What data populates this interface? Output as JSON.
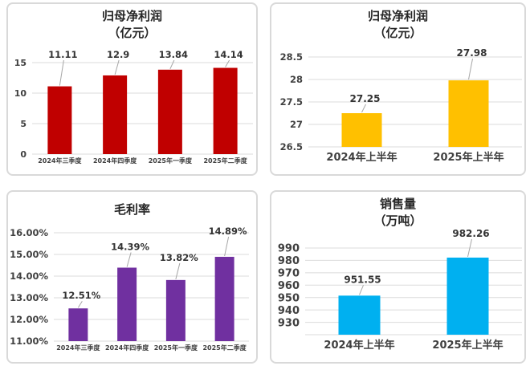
{
  "colors": {
    "gridline": "#DBDBDB",
    "axis_text": "#404040",
    "data_label": "#333333",
    "leader_line": "#A6A6A6",
    "panel_border": "#D9D9D9",
    "title_text": "#262626"
  },
  "chart_data": [
    {
      "type": "bar",
      "title": "归母净利润",
      "subtitle": "（亿元）",
      "categories": [
        "2024年三季度",
        "2024年四季度",
        "2025年一季度",
        "2025年二季度"
      ],
      "values": [
        11.11,
        12.9,
        13.84,
        14.14
      ],
      "value_labels": [
        "11.11",
        "12.9",
        "13.84",
        "14.14"
      ],
      "ylim": [
        0,
        15
      ],
      "ytick_values": [
        15,
        10,
        5,
        0
      ],
      "ytick_labels": [
        "15",
        "10",
        "5",
        "0"
      ],
      "bar_color": "#C00000",
      "grid": true,
      "legend": "none",
      "value_label_layout": "aligned-top-row-with-leader-lines"
    },
    {
      "type": "bar",
      "title": "归母净利润",
      "subtitle": "（亿元）",
      "categories": [
        "2024年上半年",
        "2025年上半年"
      ],
      "values": [
        27.25,
        27.98
      ],
      "value_labels": [
        "27.25",
        "27.98"
      ],
      "ylim": [
        26.5,
        28.5
      ],
      "ytick_values": [
        28.5,
        28,
        27.5,
        27,
        26.5
      ],
      "ytick_labels": [
        "28.5",
        "28",
        "27.5",
        "27",
        "26.5"
      ],
      "bar_color": "#FFC000",
      "grid": true,
      "legend": "none",
      "value_label_layout": "above-bar-with-leader-lines"
    },
    {
      "type": "bar",
      "title": "毛利率",
      "categories": [
        "2024年三季度",
        "2024年四季度",
        "2025年一季度",
        "2025年二季度"
      ],
      "values": [
        12.51,
        14.39,
        13.82,
        14.89
      ],
      "value_labels": [
        "12.51%",
        "14.39%",
        "13.82%",
        "14.89%"
      ],
      "ylim": [
        11,
        16
      ],
      "ytick_values": [
        16,
        15,
        14,
        13,
        12,
        11
      ],
      "ytick_labels": [
        "16.00%",
        "15.00%",
        "14.00%",
        "13.00%",
        "12.00%",
        "11.00%"
      ],
      "bar_color": "#7030A0",
      "grid": true,
      "legend": "none",
      "value_label_layout": "above-bar-with-leader-lines"
    },
    {
      "type": "bar",
      "title": "销售量",
      "subtitle": "（万吨）",
      "categories": [
        "2024年上半年",
        "2025年上半年"
      ],
      "values": [
        951.55,
        982.26
      ],
      "value_labels": [
        "951.55",
        "982.26"
      ],
      "ylim": [
        920,
        990
      ],
      "ytick_values": [
        990,
        980,
        970,
        960,
        950,
        940,
        930
      ],
      "ytick_labels": [
        "990",
        "980",
        "970",
        "960",
        "950",
        "940",
        "930"
      ],
      "bar_color": "#00B0F0",
      "grid": true,
      "legend": "none",
      "value_label_layout": "above-bar-with-leader-lines"
    }
  ]
}
